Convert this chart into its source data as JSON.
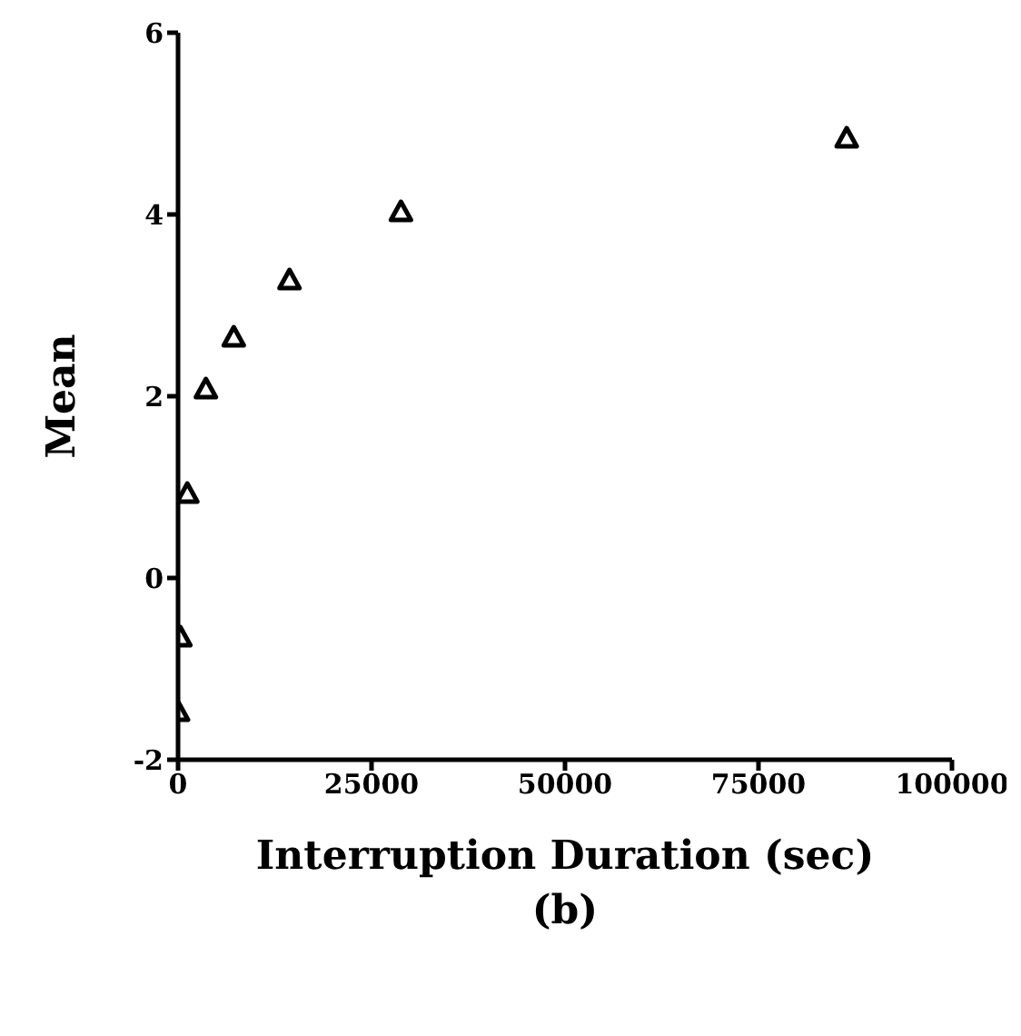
{
  "chart_data": {
    "type": "scatter",
    "xlabel": "Interruption Duration (sec)",
    "ylabel": "Mean",
    "annotations": [
      "(b)"
    ],
    "x": [
      0,
      300,
      1200,
      3600,
      7200,
      14400,
      28800,
      86400
    ],
    "series": [
      {
        "color": "#000000",
        "values": [
          -1.48,
          -0.66,
          0.92,
          2.07,
          2.64,
          3.27,
          4.02,
          4.83
        ]
      }
    ],
    "xlim": [
      0,
      100000
    ],
    "xticks": [
      0,
      25000,
      50000,
      75000,
      100000
    ],
    "ylim": [
      -2,
      6
    ],
    "yticks": [
      -2,
      0,
      2,
      4,
      6
    ],
    "marker": "triangle",
    "grid": false,
    "legend": false
  }
}
